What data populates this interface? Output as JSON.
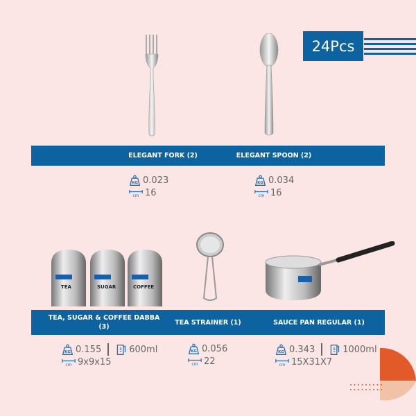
{
  "badge": {
    "label": "24Pcs"
  },
  "products": [
    {
      "name": "ELEGANT FORK (2)",
      "weight": "0.023",
      "size": "16"
    },
    {
      "name": "ELEGANT SPOON (2)",
      "weight": "0.034",
      "size": "16"
    },
    {
      "name": "TEA, SUGAR & COFFEE DABBA (3)",
      "weight": "0.155",
      "capacity": "600ml",
      "size": "9x9x15",
      "labels": [
        "TEA",
        "SUGAR",
        "COFFEE"
      ]
    },
    {
      "name": "TEA STRAINER (1)",
      "weight": "0.056",
      "size": "22"
    },
    {
      "name": "SAUCE PAN REGULAR (1)",
      "weight": "0.343",
      "capacity": "1000ml",
      "size": "15X31X7"
    }
  ],
  "icons": {
    "weight": "kg-weight-icon",
    "size": "ruler-cm-icon",
    "capacity": "measuring-jug-icon"
  },
  "colors": {
    "background": "#fbe6e5",
    "brand": "#0d62a0",
    "accent": "#e25a2a",
    "accent_light": "#f0c3a8"
  }
}
